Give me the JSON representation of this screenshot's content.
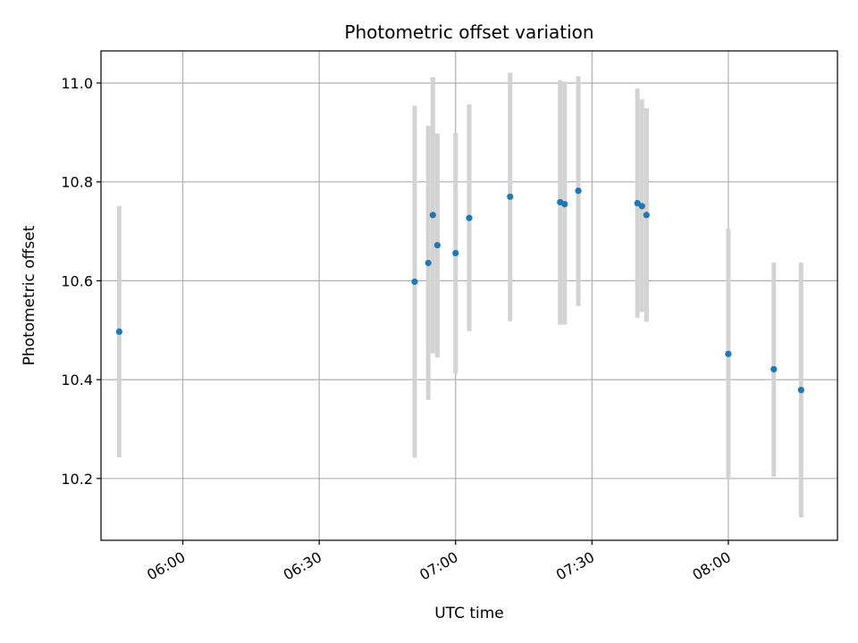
{
  "chart_data": {
    "type": "scatter",
    "title": "Photometric offset variation",
    "xlabel": "UTC time",
    "ylabel": "Photometric offset",
    "x_unit": "UTC time (HH:MM)",
    "xlim": [
      "05:42",
      "08:24"
    ],
    "ylim": [
      10.075,
      11.065
    ],
    "xticks": [
      "06:00",
      "06:30",
      "07:00",
      "07:30",
      "08:00"
    ],
    "yticks": [
      10.2,
      10.4,
      10.6,
      10.8,
      11.0
    ],
    "grid": true,
    "point_color": "#1f77b4",
    "errorbar_color": "#d3d3d3",
    "points": [
      {
        "x": "05:46",
        "y": 10.497,
        "ylow": 10.243,
        "yhigh": 10.751
      },
      {
        "x": "06:51",
        "y": 10.598,
        "ylow": 10.242,
        "yhigh": 10.954
      },
      {
        "x": "06:54",
        "y": 10.636,
        "ylow": 10.359,
        "yhigh": 10.914
      },
      {
        "x": "06:55",
        "y": 10.733,
        "ylow": 10.453,
        "yhigh": 11.012
      },
      {
        "x": "06:56",
        "y": 10.672,
        "ylow": 10.445,
        "yhigh": 10.898
      },
      {
        "x": "07:00",
        "y": 10.656,
        "ylow": 10.412,
        "yhigh": 10.899
      },
      {
        "x": "07:03",
        "y": 10.727,
        "ylow": 10.498,
        "yhigh": 10.957
      },
      {
        "x": "07:12",
        "y": 10.77,
        "ylow": 10.518,
        "yhigh": 11.021
      },
      {
        "x": "07:23",
        "y": 10.759,
        "ylow": 10.511,
        "yhigh": 11.006
      },
      {
        "x": "07:24",
        "y": 10.755,
        "ylow": 10.511,
        "yhigh": 11.003
      },
      {
        "x": "07:27",
        "y": 10.782,
        "ylow": 10.549,
        "yhigh": 11.014
      },
      {
        "x": "07:40",
        "y": 10.757,
        "ylow": 10.525,
        "yhigh": 10.989
      },
      {
        "x": "07:41",
        "y": 10.751,
        "ylow": 10.537,
        "yhigh": 10.967
      },
      {
        "x": "07:42",
        "y": 10.733,
        "ylow": 10.517,
        "yhigh": 10.949
      },
      {
        "x": "08:00",
        "y": 10.452,
        "ylow": 10.198,
        "yhigh": 10.705
      },
      {
        "x": "08:10",
        "y": 10.421,
        "ylow": 10.204,
        "yhigh": 10.637
      },
      {
        "x": "08:16",
        "y": 10.379,
        "ylow": 10.121,
        "yhigh": 10.637
      }
    ]
  }
}
